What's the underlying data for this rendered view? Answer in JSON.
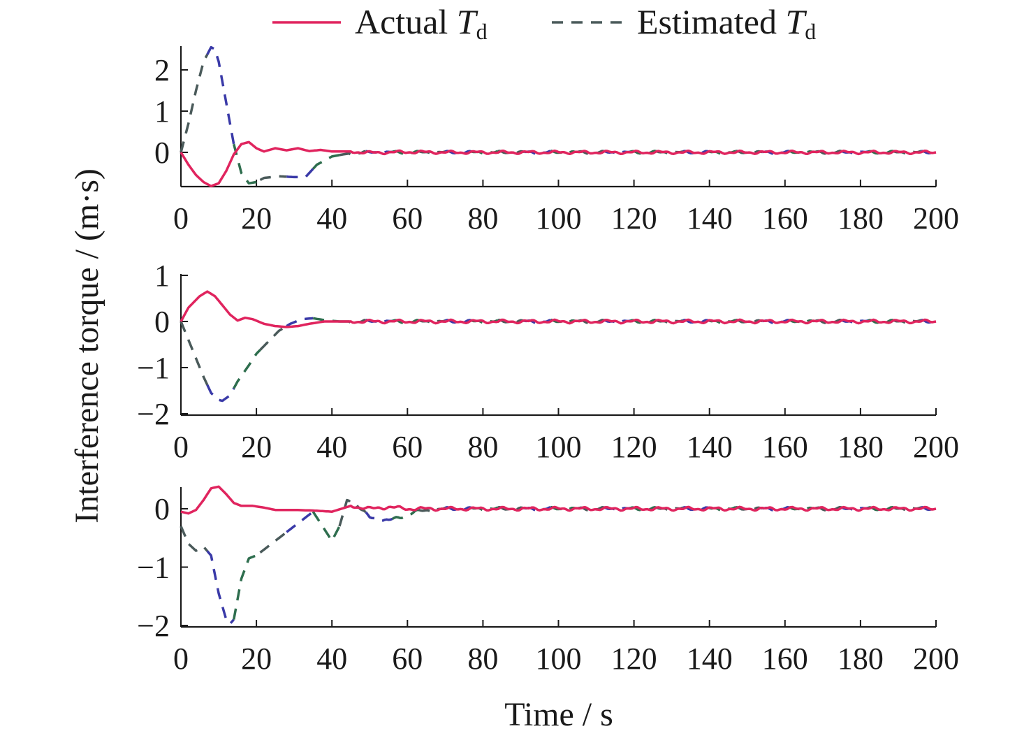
{
  "legend": {
    "actual_prefix": "Actual ",
    "estimated_prefix": "Estimated ",
    "symbol_main": "T",
    "symbol_sub": "d"
  },
  "colors": {
    "actual": "#e0245e",
    "estimated_grey": "#4a5a5a",
    "estimated_blue": "#3a3aa8",
    "estimated_green": "#2e6e4e",
    "axis": "#1a1a1a"
  },
  "chart_data": [
    {
      "type": "line",
      "xlabel": "",
      "ylabel": "Interference torque / (m·s)",
      "xlim": [
        0,
        200
      ],
      "ylim": [
        -0.85,
        2.6
      ],
      "xticks": [
        0,
        20,
        40,
        60,
        80,
        100,
        120,
        140,
        160,
        180,
        200
      ],
      "yticks": [
        0,
        1,
        2
      ],
      "ytick_labels": [
        "0",
        "1",
        "2"
      ],
      "series": [
        {
          "name": "Actual T_d",
          "style": "solid",
          "x": [
            0,
            2,
            4,
            6,
            8,
            10,
            12,
            14,
            16,
            18,
            20,
            22,
            25,
            28,
            31,
            34,
            37,
            40,
            45,
            50,
            60,
            70,
            80,
            100,
            120,
            140,
            160,
            180,
            200
          ],
          "y": [
            0,
            -0.3,
            -0.55,
            -0.72,
            -0.82,
            -0.75,
            -0.45,
            -0.05,
            0.2,
            0.25,
            0.1,
            0.02,
            0.1,
            0.05,
            0.1,
            0.03,
            0.06,
            0.02,
            0.02,
            -0.01,
            0.01,
            0.0,
            0.0,
            0.0,
            0.0,
            0.0,
            0.0,
            0.0,
            0.0
          ]
        },
        {
          "name": "Estimated T_d",
          "style": "dashed",
          "x": [
            0,
            2,
            4,
            6,
            8,
            9,
            10,
            12,
            14,
            16,
            18,
            20,
            22,
            26,
            30,
            33,
            36,
            40,
            43,
            45,
            50,
            60,
            70,
            80,
            100,
            120,
            140,
            160,
            180,
            200
          ],
          "y": [
            0,
            0.7,
            1.5,
            2.2,
            2.55,
            2.5,
            2.2,
            1.2,
            0.2,
            -0.5,
            -0.75,
            -0.72,
            -0.62,
            -0.58,
            -0.6,
            -0.6,
            -0.3,
            -0.1,
            -0.05,
            -0.02,
            0.0,
            0.0,
            0.0,
            0.0,
            0.0,
            0.0,
            0.0,
            0.0,
            0.0,
            0.0
          ]
        }
      ]
    },
    {
      "type": "line",
      "xlabel": "",
      "ylabel": "",
      "xlim": [
        0,
        200
      ],
      "ylim": [
        -2,
        1.1
      ],
      "xticks": [
        0,
        20,
        40,
        60,
        80,
        100,
        120,
        140,
        160,
        180,
        200
      ],
      "yticks": [
        1,
        0,
        -1,
        -2
      ],
      "ytick_labels": [
        "1",
        "0",
        "−1",
        "−2"
      ],
      "series": [
        {
          "name": "Actual T_d",
          "style": "solid",
          "x": [
            0,
            2,
            5,
            7,
            9,
            11,
            13,
            15,
            17,
            19,
            22,
            25,
            28,
            31,
            34,
            38,
            42,
            50,
            60,
            70,
            80,
            100,
            120,
            140,
            160,
            180,
            200
          ],
          "y": [
            0,
            0.3,
            0.55,
            0.65,
            0.55,
            0.35,
            0.15,
            0.02,
            0.08,
            0.05,
            -0.05,
            -0.1,
            -0.12,
            -0.1,
            -0.05,
            0.0,
            0.0,
            0.0,
            0.0,
            0.0,
            0.0,
            0.0,
            0.0,
            0.0,
            0.0,
            0.0,
            0.0
          ]
        },
        {
          "name": "Estimated T_d",
          "style": "dashed",
          "x": [
            0,
            2,
            4,
            6,
            8,
            10,
            11,
            13,
            15,
            18,
            20,
            23,
            26,
            29,
            32,
            35,
            38,
            42,
            50,
            60,
            70,
            80,
            100,
            120,
            140,
            160,
            180,
            200
          ],
          "y": [
            0,
            -0.4,
            -0.8,
            -1.2,
            -1.55,
            -1.7,
            -1.72,
            -1.6,
            -1.3,
            -0.95,
            -0.7,
            -0.45,
            -0.2,
            -0.05,
            0.05,
            0.07,
            0.03,
            0.0,
            0.0,
            0.0,
            0.0,
            0.0,
            0.0,
            0.0,
            0.0,
            0.0,
            0.0,
            0.0
          ]
        }
      ]
    },
    {
      "type": "line",
      "xlabel": "Time / s",
      "ylabel": "",
      "xlim": [
        0,
        200
      ],
      "ylim": [
        -2,
        0.4
      ],
      "xticks": [
        0,
        20,
        40,
        60,
        80,
        100,
        120,
        140,
        160,
        180,
        200
      ],
      "yticks": [
        0,
        -1,
        -2
      ],
      "ytick_labels": [
        "0",
        "−1",
        "−2"
      ],
      "series": [
        {
          "name": "Actual T_d",
          "style": "solid",
          "x": [
            0,
            2,
            4,
            6,
            8,
            10,
            12,
            14,
            16,
            19,
            22,
            25,
            30,
            35,
            40,
            45,
            50,
            55,
            60,
            70,
            80,
            100,
            120,
            140,
            160,
            180,
            200
          ],
          "y": [
            -0.05,
            -0.08,
            -0.02,
            0.15,
            0.35,
            0.38,
            0.25,
            0.1,
            0.05,
            0.05,
            0.02,
            -0.02,
            -0.02,
            -0.03,
            -0.05,
            0.05,
            0.0,
            0.03,
            0.0,
            0.0,
            0.0,
            0.0,
            0.0,
            0.0,
            0.0,
            0.0,
            0.0
          ]
        },
        {
          "name": "Estimated T_d",
          "style": "dashed",
          "x": [
            0,
            2,
            4,
            6,
            8,
            10,
            12,
            13,
            14,
            16,
            18,
            20,
            25,
            30,
            35,
            40,
            42,
            44,
            46,
            50,
            55,
            58,
            62,
            70,
            80,
            100,
            120,
            140,
            160,
            180,
            200
          ],
          "y": [
            -0.3,
            -0.6,
            -0.72,
            -0.65,
            -0.8,
            -1.45,
            -1.9,
            -1.97,
            -1.9,
            -1.2,
            -0.85,
            -0.8,
            -0.55,
            -0.3,
            -0.05,
            -0.55,
            -0.3,
            0.15,
            0.1,
            -0.15,
            -0.2,
            -0.15,
            -0.05,
            0.0,
            0.0,
            0.0,
            0.0,
            0.0,
            0.0,
            0.0,
            0.0
          ]
        }
      ]
    }
  ]
}
